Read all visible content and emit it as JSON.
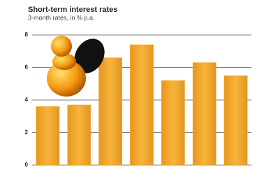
{
  "chart_data": {
    "type": "bar",
    "title": "Short-term interest rates",
    "subtitle": "3-month rates, in % p.a.",
    "categories": [
      null,
      null,
      null,
      null,
      null,
      null,
      null
    ],
    "values": [
      3.6,
      3.7,
      6.6,
      7.4,
      5.2,
      6.3,
      5.5
    ],
    "color": "#f2a92e",
    "ylim": [
      0,
      8
    ],
    "yticks": [
      0,
      2,
      4,
      6,
      8
    ],
    "grid": true
  }
}
